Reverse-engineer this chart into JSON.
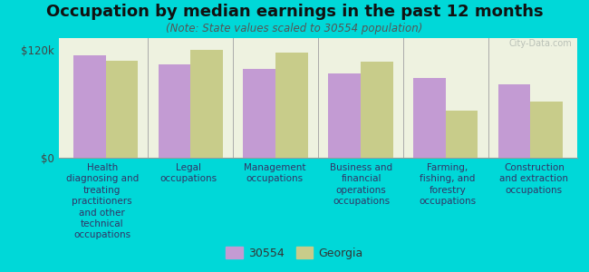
{
  "title": "Occupation by median earnings in the past 12 months",
  "subtitle": "(Note: State values scaled to 30554 population)",
  "categories": [
    "Health\ndiagnosing and\ntreating\npractitioners\nand other\ntechnical\noccupations",
    "Legal\noccupations",
    "Management\noccupations",
    "Business and\nfinancial\noperations\noccupations",
    "Farming,\nfishing, and\nforestry\noccupations",
    "Construction\nand extraction\noccupations"
  ],
  "values_30554": [
    114000,
    104000,
    99000,
    94000,
    89000,
    82000
  ],
  "values_georgia": [
    108000,
    120000,
    117000,
    107000,
    52000,
    62000
  ],
  "color_30554": "#c39bd3",
  "color_georgia": "#c8cc8a",
  "background_fig": "#00d8d8",
  "background_plot": "#eef2e0",
  "yticks": [
    0,
    120000
  ],
  "ytick_labels": [
    "$0",
    "$120k"
  ],
  "ylim": [
    0,
    133000
  ],
  "legend_label_30554": "30554",
  "legend_label_georgia": "Georgia",
  "watermark": "City-Data.com",
  "title_fontsize": 13,
  "subtitle_fontsize": 8.5,
  "bar_width": 0.38,
  "xlabel_fontsize": 7.5,
  "legend_fontsize": 9
}
